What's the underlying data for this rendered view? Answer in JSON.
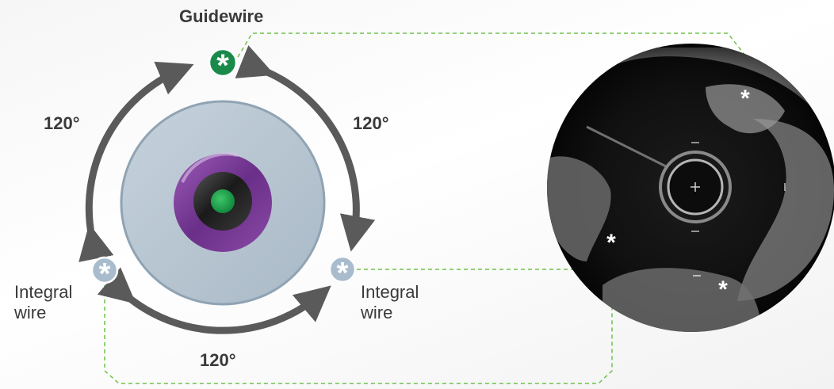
{
  "labels": {
    "guidewire": "Guidewire",
    "angle_left": "120°",
    "angle_right": "120°",
    "angle_bottom": "120°",
    "integral_left_line1": "Integral",
    "integral_left_line2": "wire",
    "integral_right_line1": "Integral",
    "integral_right_line2": "wire"
  },
  "markers": {
    "asterisk": "*"
  },
  "colors": {
    "guidewire_marker": "#1a8a4a",
    "integral_marker": "#a9bccd",
    "arrow": "#5a5a5a",
    "catheter_outer": "#b9c7d3",
    "lumen_ring": "#7b3f98",
    "core": "#222222",
    "center_dot": "#1f9a4a",
    "connector_dash": "#6cc24a"
  }
}
